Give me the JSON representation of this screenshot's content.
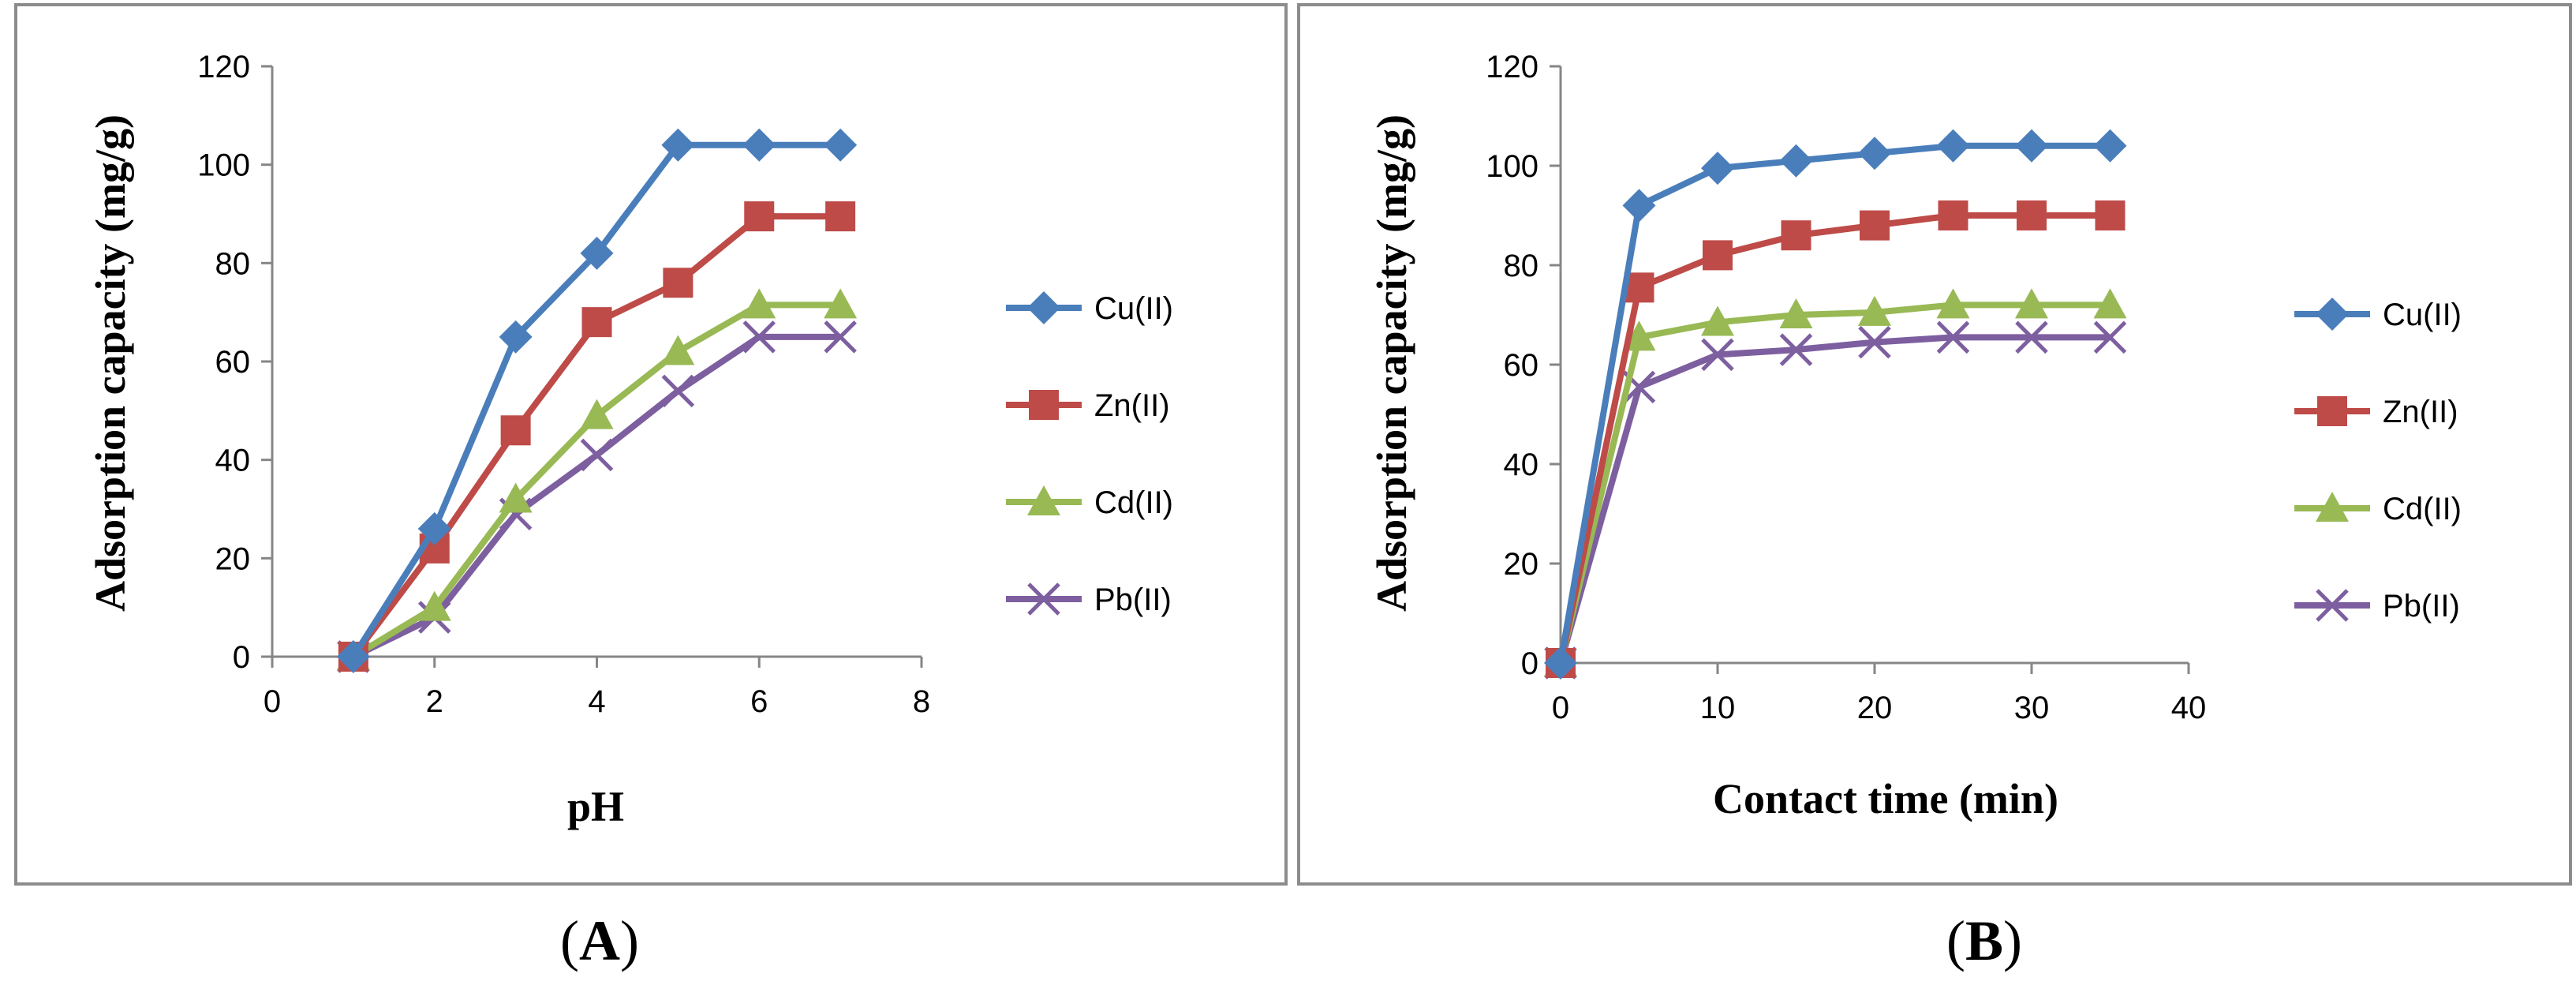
{
  "colors": {
    "Cu(II)": "#4a7ebb",
    "Zn(II)": "#be4b48",
    "Cd(II)": "#98b954",
    "Pb(II)": "#7d5fa0",
    "frame": "#8c8c8c",
    "axis": "#868686"
  },
  "chart_data": [
    {
      "id": "A",
      "type": "line",
      "caption_letter": "A",
      "xlabel": "pH",
      "ylabel": "Adsorption capacity (mg/g)",
      "xlim": [
        0,
        8
      ],
      "ylim": [
        0,
        120
      ],
      "x_ticks": [
        0,
        2,
        4,
        6,
        8
      ],
      "y_ticks": [
        0,
        20,
        40,
        60,
        80,
        100,
        120
      ],
      "x_tick_labels": [
        "0",
        "2",
        "4",
        "6",
        "8"
      ],
      "y_tick_labels": [
        "0",
        "20",
        "40",
        "60",
        "80",
        "100",
        "120"
      ],
      "legend_position": "right",
      "x": [
        1,
        2,
        3,
        4,
        5,
        6,
        7
      ],
      "series": [
        {
          "name": "Cu(II)",
          "marker": "diamond",
          "values": [
            0,
            26,
            65,
            82,
            104,
            104,
            104
          ]
        },
        {
          "name": "Zn(II)",
          "marker": "square",
          "values": [
            0,
            22,
            46,
            68,
            76,
            89.5,
            89.5
          ]
        },
        {
          "name": "Cd(II)",
          "marker": "triangle",
          "values": [
            0,
            10,
            32,
            49,
            62,
            71.5,
            71.5
          ]
        },
        {
          "name": "Pb(II)",
          "marker": "x",
          "values": [
            0,
            8,
            29,
            41,
            54,
            65,
            65
          ]
        }
      ]
    },
    {
      "id": "B",
      "type": "line",
      "caption_letter": "B",
      "xlabel": "Contact time (min)",
      "ylabel": "Adsorption capacity (mg/g)",
      "xlim": [
        0,
        40
      ],
      "ylim": [
        0,
        120
      ],
      "x_ticks": [
        0,
        10,
        20,
        30,
        40
      ],
      "y_ticks": [
        0,
        20,
        40,
        60,
        80,
        100,
        120
      ],
      "x_tick_labels": [
        "0",
        "10",
        "20",
        "30",
        "40"
      ],
      "y_tick_labels": [
        "0",
        "20",
        "40",
        "60",
        "80",
        "100",
        "120"
      ],
      "legend_position": "right",
      "x": [
        0,
        5,
        10,
        15,
        20,
        25,
        30,
        35
      ],
      "series": [
        {
          "name": "Cu(II)",
          "marker": "diamond",
          "values": [
            0,
            92,
            99.5,
            101,
            102.5,
            104,
            104,
            104
          ]
        },
        {
          "name": "Zn(II)",
          "marker": "square",
          "values": [
            0,
            75.5,
            82,
            86,
            88,
            90,
            90,
            90
          ]
        },
        {
          "name": "Cd(II)",
          "marker": "triangle",
          "values": [
            0,
            65.5,
            68.5,
            70,
            70.5,
            72,
            72,
            72
          ]
        },
        {
          "name": "Pb(II)",
          "marker": "x",
          "values": [
            0,
            55.5,
            62,
            63,
            64.5,
            65.5,
            65.5,
            65.5
          ]
        }
      ]
    }
  ]
}
